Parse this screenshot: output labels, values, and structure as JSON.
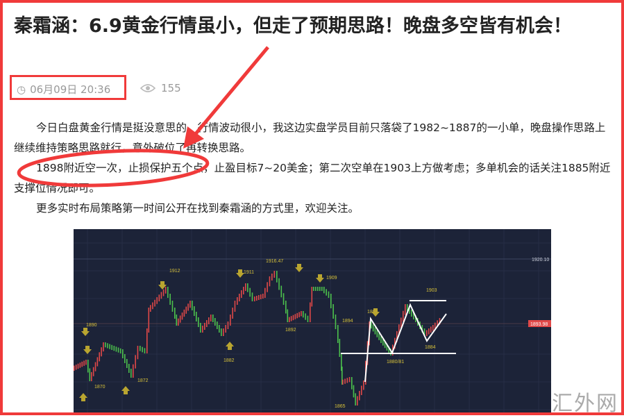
{
  "article": {
    "title": "秦霜涵：6.9黄金行情虽小，但走了预期思路！晚盘多空皆有机会！",
    "date": "06月09日 20:36",
    "views": "155",
    "paragraphs": [
      "今日白盘黄金行情是挺没意思的，行情波动很小，我这边实盘学员目前只落袋了1982~1887的一小单，晚盘操作思路上继续维持策略思路就行，意外破位了再转换思路。",
      "1898附近空一次，止损保护五个点，止盈目标7~20美金；第二次空单在1903上方做考虑；多单机会的话关注1885附近支撑位情况即可。",
      "更多实时布局策略第一时间公开在找到秦霜涵的方式里，欢迎关注。"
    ]
  },
  "chart": {
    "labels": [
      "1890",
      "1870",
      "1872",
      "1912",
      "1882",
      "1911",
      "1916.47",
      "1909",
      "1892",
      "1894",
      "1865",
      "1898",
      "1880/81",
      "1903",
      "1884"
    ],
    "axis": {
      "price_line": "1920.10",
      "current_price": "1893.98"
    },
    "colors": {
      "background": "#1c2338",
      "up": "#e04848",
      "down": "#4cc04c",
      "annotation": "#d8c23a"
    }
  },
  "watermark": "汇外网",
  "colors": {
    "highlight": "#f03a3a"
  }
}
